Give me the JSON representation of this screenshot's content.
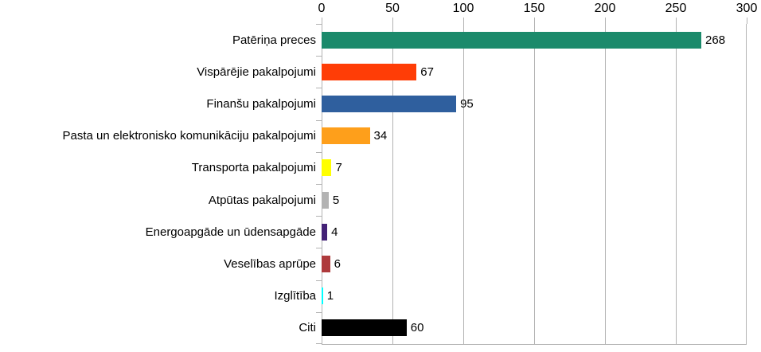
{
  "chart_data": {
    "type": "bar",
    "orientation": "horizontal",
    "title": "",
    "xlabel": "",
    "ylabel": "",
    "grid": true,
    "xlim": [
      0,
      300
    ],
    "x_ticks": [
      "0",
      "50",
      "100",
      "150",
      "200",
      "250",
      "300"
    ],
    "x_tick_values": [
      0,
      50,
      100,
      150,
      200,
      250,
      300
    ],
    "categories": [
      "Patēriņa preces",
      "Vispārējie pakalpojumi",
      "Finanšu pakalpojumi",
      "Pasta un elektronisko komunikāciju pakalpojumi",
      "Transporta pakalpojumi",
      "Atpūtas pakalpojumi",
      "Energoapgāde un ūdensapgāde",
      "Veselības aprūpe",
      "Izglītība",
      "Citi"
    ],
    "values": [
      268,
      67,
      95,
      34,
      7,
      5,
      4,
      6,
      1,
      60
    ],
    "value_labels": [
      "268",
      "67",
      "95",
      "34",
      "7",
      "5",
      "4",
      "6",
      "1",
      "60"
    ],
    "colors": [
      "#1b8a6b",
      "#ff3d06",
      "#2f5f9e",
      "#fe9f1b",
      "#ffff00",
      "#b3b3b3",
      "#432176",
      "#ae3a3c",
      "#00ffff",
      "#000000"
    ],
    "legend": null
  },
  "style": {
    "grid_color": "#b3b3b3",
    "text_color": "#000000",
    "background": "#ffffff"
  }
}
